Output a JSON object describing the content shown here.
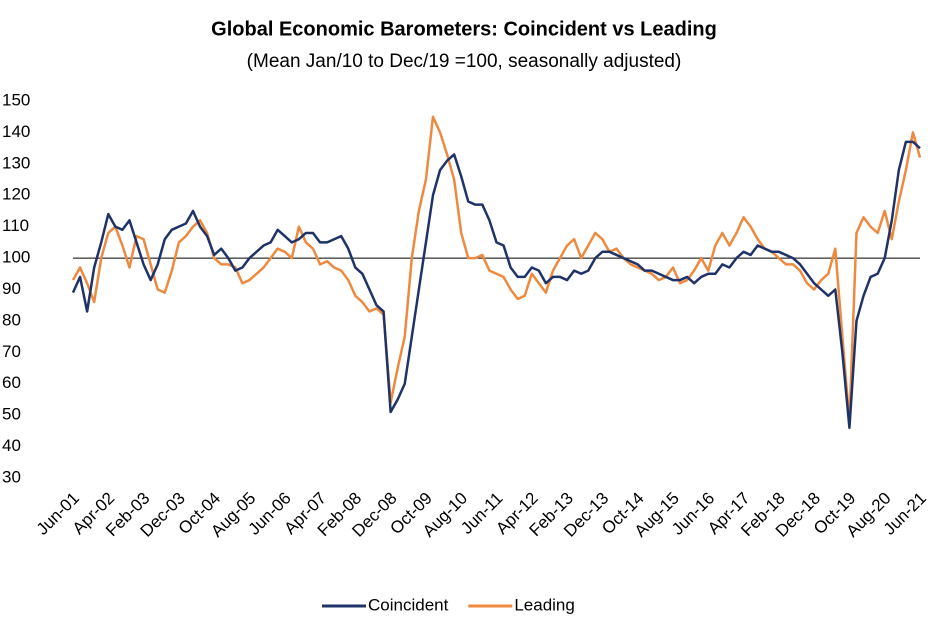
{
  "chart_data": {
    "type": "line",
    "title": "Global Economic Barometers: Coincident vs Leading",
    "subtitle": "(Mean Jan/10 to Dec/19 =100, seasonally adjusted)",
    "categories": [
      "Jun-01",
      null,
      null,
      null,
      null,
      "Apr-02",
      null,
      null,
      null,
      null,
      "Feb-03",
      null,
      null,
      null,
      null,
      "Dec-03",
      null,
      null,
      null,
      null,
      "Oct-04",
      null,
      null,
      null,
      null,
      "Aug-05",
      null,
      null,
      null,
      null,
      "Jun-06",
      null,
      null,
      null,
      null,
      "Apr-07",
      null,
      null,
      null,
      null,
      "Feb-08",
      null,
      null,
      null,
      null,
      "Dec-08",
      null,
      null,
      null,
      null,
      "Oct-09",
      null,
      null,
      null,
      null,
      "Aug-10",
      null,
      null,
      null,
      null,
      "Jun-11",
      null,
      null,
      null,
      null,
      "Apr-12",
      null,
      null,
      null,
      null,
      "Feb-13",
      null,
      null,
      null,
      null,
      "Dec-13",
      null,
      null,
      null,
      null,
      "Oct-14",
      null,
      null,
      null,
      null,
      "Aug-15",
      null,
      null,
      null,
      null,
      "Jun-16",
      null,
      null,
      null,
      null,
      "Apr-17",
      null,
      null,
      null,
      null,
      "Feb-18",
      null,
      null,
      null,
      null,
      "Dec-18",
      null,
      null,
      null,
      null,
      "Oct-19",
      null,
      null,
      null,
      null,
      "Aug-20",
      null,
      null,
      null,
      null,
      "Jun-21"
    ],
    "series": [
      {
        "name": "Coincident",
        "color": "#1f3369",
        "values": [
          89,
          94,
          83,
          97,
          105,
          114,
          110,
          109,
          112,
          105,
          98,
          93,
          98,
          106,
          109,
          110,
          111,
          115,
          110,
          107,
          101,
          103,
          100,
          96,
          97,
          100,
          102,
          104,
          105,
          109,
          107,
          105,
          106,
          108,
          108,
          105,
          105,
          106,
          107,
          103,
          97,
          95,
          90,
          85,
          83,
          51,
          55,
          60,
          75,
          90,
          105,
          120,
          128,
          131,
          133,
          126,
          118,
          117,
          117,
          112,
          105,
          104,
          97,
          94,
          94,
          97,
          96,
          92,
          94,
          94,
          93,
          96,
          95,
          96,
          100,
          102,
          102,
          101,
          100,
          99,
          98,
          96,
          96,
          95,
          94,
          93,
          93,
          94,
          92,
          94,
          95,
          95,
          98,
          97,
          100,
          102,
          101,
          104,
          103,
          102,
          102,
          101,
          100,
          98,
          95,
          92,
          90,
          88,
          90,
          70,
          46,
          80,
          88,
          94,
          95,
          100,
          112,
          128,
          137,
          137,
          135
        ]
      },
      {
        "name": "Leading",
        "color": "#ed8a3f",
        "values": [
          93,
          97,
          92,
          86,
          100,
          108,
          110,
          104,
          97,
          107,
          106,
          98,
          90,
          89,
          96,
          105,
          107,
          110,
          112,
          108,
          100,
          98,
          98,
          97,
          92,
          93,
          95,
          97,
          100,
          103,
          102,
          100,
          110,
          105,
          103,
          98,
          99,
          97,
          96,
          93,
          88,
          86,
          83,
          84,
          82,
          54,
          65,
          75,
          100,
          115,
          125,
          145,
          140,
          133,
          125,
          108,
          100,
          100,
          101,
          96,
          95,
          94,
          90,
          87,
          88,
          95,
          92,
          89,
          96,
          100,
          104,
          106,
          100,
          104,
          108,
          106,
          102,
          103,
          100,
          98,
          97,
          96,
          95,
          93,
          94,
          97,
          92,
          93,
          96,
          100,
          96,
          104,
          108,
          104,
          108,
          113,
          110,
          106,
          103,
          102,
          100,
          98,
          98,
          96,
          92,
          90,
          93,
          95,
          103,
          75,
          48,
          108,
          113,
          110,
          108,
          115,
          106,
          118,
          128,
          140,
          132
        ]
      }
    ],
    "refline": 100,
    "ylim": [
      30,
      150
    ],
    "yticks": [
      30,
      40,
      50,
      60,
      70,
      80,
      90,
      100,
      110,
      120,
      130,
      140,
      150
    ],
    "grid": false,
    "legend": "bottom"
  }
}
